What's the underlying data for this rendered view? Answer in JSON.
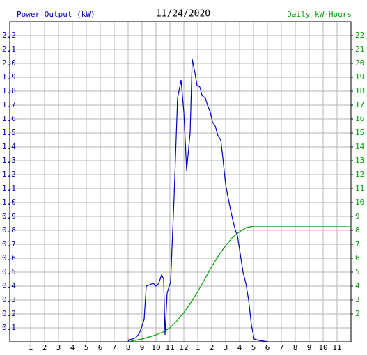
{
  "chart_data": {
    "type": "line",
    "title": "11/24/2020",
    "y_label": "Power Output (kW)",
    "y2_label": "Daily kW-Hours",
    "grid": true,
    "xlim": [
      -0.5,
      24
    ],
    "xticks": [
      1,
      2,
      3,
      4,
      5,
      6,
      7,
      8,
      9,
      10,
      11,
      12,
      {
        "value": 13,
        "label": "1"
      },
      {
        "value": 14,
        "label": "2"
      },
      {
        "value": 15,
        "label": "3"
      },
      {
        "value": 16,
        "label": "4"
      },
      {
        "value": 17,
        "label": "5"
      },
      {
        "value": 18,
        "label": "6"
      },
      {
        "value": 19,
        "label": "7"
      },
      {
        "value": 20,
        "label": "8"
      },
      {
        "value": 21,
        "label": "9"
      },
      {
        "value": 22,
        "label": "10"
      },
      {
        "value": 23,
        "label": "11"
      }
    ],
    "ylim": [
      0,
      2.3
    ],
    "yticks": [
      0.1,
      0.2,
      0.3,
      0.4,
      0.5,
      0.6,
      0.7,
      0.8,
      0.9,
      {
        "value": 1,
        "label": "1.0"
      },
      1.1,
      1.2,
      1.3,
      1.4,
      1.5,
      1.6,
      1.7,
      1.8,
      1.9,
      {
        "value": 2,
        "label": "2.0"
      },
      2.1,
      2.2
    ],
    "y2lim": [
      0,
      23
    ],
    "y2ticks": [
      2,
      3,
      4,
      5,
      6,
      7,
      8,
      9,
      10,
      11,
      12,
      13,
      14,
      15,
      16,
      17,
      18,
      19,
      20,
      21,
      22
    ],
    "series": [
      {
        "name": "Power Output (kW)",
        "color": "#0000c0",
        "x": [
          8.0,
          8.05,
          8.3,
          8.55,
          8.8,
          8.95,
          9.15,
          9.3,
          9.55,
          9.8,
          10.0,
          10.2,
          10.4,
          10.55,
          10.65,
          10.8,
          11.05,
          11.3,
          11.55,
          11.8,
          12.0,
          12.2,
          12.45,
          12.6,
          12.8,
          12.95,
          13.15,
          13.3,
          13.55,
          13.7,
          13.9,
          14.05,
          14.25,
          14.45,
          14.65,
          14.8,
          15.0,
          15.15,
          15.35,
          15.5,
          15.7,
          15.85,
          16.05,
          16.25,
          16.45,
          16.65,
          16.85,
          17.05,
          17.4,
          18.05
        ],
        "values": [
          0,
          0.015,
          0.02,
          0.03,
          0.06,
          0.1,
          0.16,
          0.4,
          0.41,
          0.42,
          0.4,
          0.42,
          0.48,
          0.45,
          0.05,
          0.35,
          0.43,
          1.04,
          1.75,
          1.88,
          1.65,
          1.23,
          1.5,
          2.03,
          1.93,
          1.84,
          1.83,
          1.77,
          1.75,
          1.7,
          1.65,
          1.58,
          1.55,
          1.48,
          1.45,
          1.32,
          1.13,
          1.05,
          0.95,
          0.88,
          0.8,
          0.76,
          0.63,
          0.5,
          0.42,
          0.3,
          0.12,
          0.02,
          0.01,
          0
        ]
      },
      {
        "name": "Daily kW-Hours",
        "color": "#00a000",
        "axis": "y2",
        "x": [
          8.0,
          8.5,
          9.0,
          9.5,
          10.0,
          10.5,
          11.0,
          11.5,
          12.0,
          12.5,
          13.0,
          13.5,
          14.0,
          14.5,
          15.0,
          15.5,
          16.0,
          16.5,
          17.0,
          24.0
        ],
        "values": [
          0,
          0.1,
          0.2,
          0.35,
          0.5,
          0.7,
          1.0,
          1.5,
          2.1,
          2.8,
          3.6,
          4.5,
          5.4,
          6.2,
          6.9,
          7.5,
          7.9,
          8.2,
          8.3,
          8.3
        ]
      }
    ]
  }
}
